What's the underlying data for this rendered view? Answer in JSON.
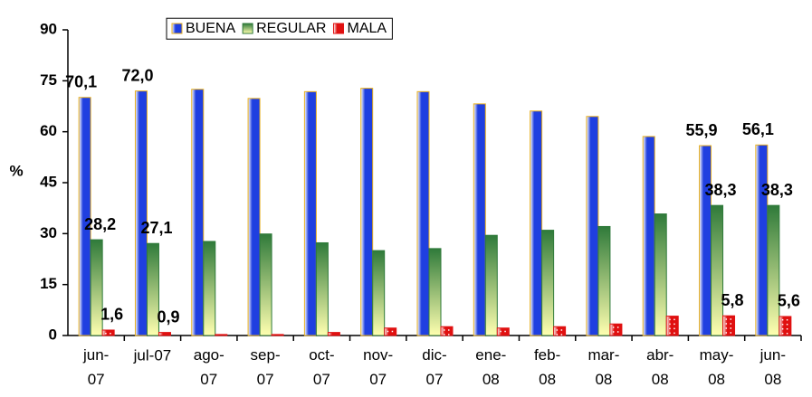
{
  "chart_data": {
    "type": "bar",
    "y_label": "%",
    "categories": [
      "jun-07",
      "jul-07",
      "ago-07",
      "sep-07",
      "oct-07",
      "nov-07",
      "dic-07",
      "ene-08",
      "feb-08",
      "mar-08",
      "abr-08",
      "may-08",
      "jun-08"
    ],
    "series": [
      {
        "name": "BUENA",
        "color": "#1f3fe0",
        "values": [
          70.1,
          72.0,
          72.5,
          69.8,
          71.8,
          72.8,
          71.8,
          68.2,
          66.1,
          64.5,
          58.6,
          55.9,
          56.1
        ],
        "value_labels": [
          "70,1",
          "72,0",
          null,
          null,
          null,
          null,
          null,
          null,
          null,
          null,
          null,
          "55,9",
          "56,1"
        ]
      },
      {
        "name": "REGULAR",
        "color": "#2f7a3a",
        "values": [
          28.2,
          27.1,
          27.7,
          29.9,
          27.3,
          25.0,
          25.6,
          29.5,
          31.0,
          32.1,
          35.8,
          38.3,
          38.3
        ],
        "value_labels": [
          "28,2",
          "27,1",
          null,
          null,
          null,
          null,
          null,
          null,
          null,
          null,
          null,
          "38,3",
          "38,3"
        ]
      },
      {
        "name": "MALA",
        "color": "#e01010",
        "values": [
          1.6,
          0.9,
          0.3,
          0.3,
          0.9,
          2.2,
          2.6,
          2.2,
          2.6,
          3.4,
          5.7,
          5.8,
          5.6
        ],
        "value_labels": [
          "1,6",
          "0,9",
          null,
          null,
          null,
          null,
          null,
          null,
          null,
          null,
          null,
          "5,8",
          "5,6"
        ]
      }
    ],
    "ylim": [
      0,
      90
    ],
    "yticks": [
      0,
      15,
      30,
      45,
      60,
      75,
      90
    ],
    "legend": "top",
    "grid": false
  }
}
